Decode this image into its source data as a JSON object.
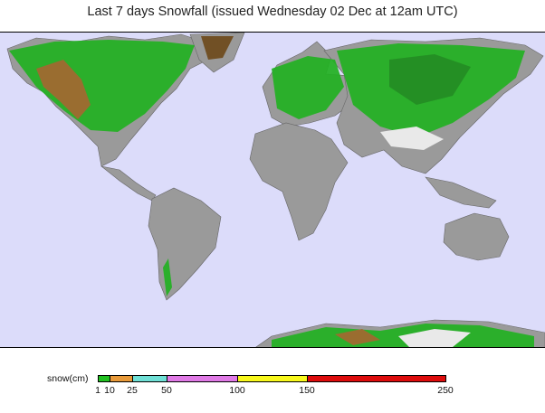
{
  "title": "Last 7 days Snowfall (issued Wednesday 02 Dec at 12am UTC)",
  "map": {
    "ocean_color": "#dcdcfa",
    "land_color": "#9a9a9a",
    "snow_colors": [
      "#22b122",
      "#1a8f1a",
      "#9a6a28",
      "#6e4a1c"
    ],
    "ice_color": "#f0f0f0"
  },
  "legend": {
    "label": "snow(cm)",
    "bins": [
      {
        "from": 1,
        "to": 10,
        "color": "#21c021"
      },
      {
        "from": 10,
        "to": 25,
        "color": "#e89a3a"
      },
      {
        "from": 25,
        "to": 50,
        "color": "#6fe0d6"
      },
      {
        "from": 50,
        "to": 100,
        "color": "#e07ae6"
      },
      {
        "from": 100,
        "to": 150,
        "color": "#f8f81c"
      },
      {
        "from": 150,
        "to": 250,
        "color": "#dd0c0c"
      }
    ],
    "ticks": [
      "1",
      "10",
      "25",
      "50",
      "100",
      "150",
      "250"
    ]
  }
}
